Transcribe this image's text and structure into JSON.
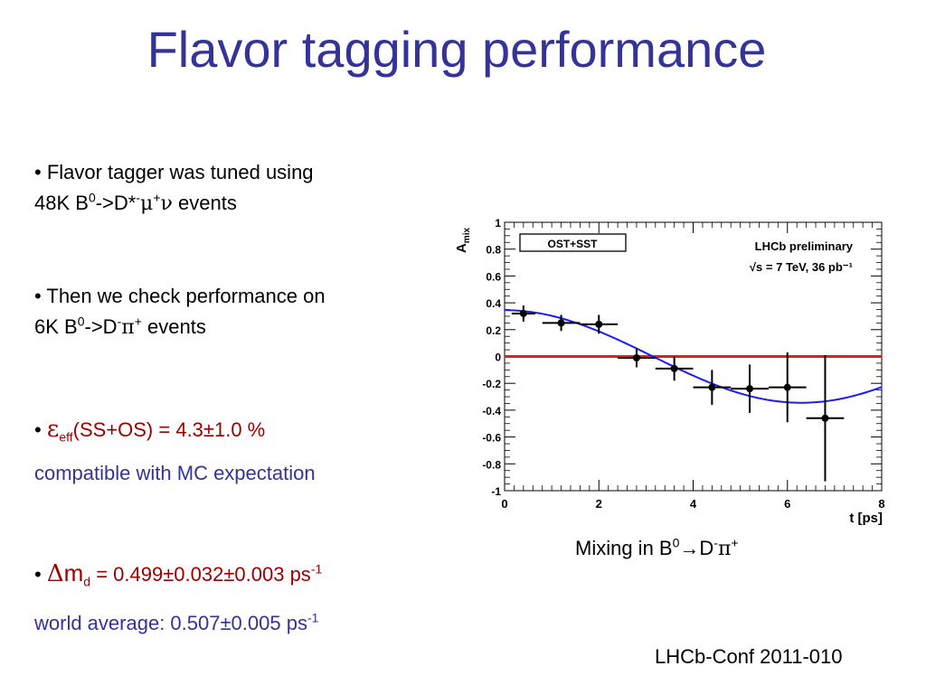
{
  "title": "Flavor tagging performance",
  "bullets": {
    "b1_line1": "• Flavor tagger was tuned using",
    "b1_line2_pre": "48K B",
    "b1_sup1": "0",
    "b1_mid": "->D*",
    "b1_sup2": "-",
    "b1_mu": "μ",
    "b1_sup3": "+",
    "b1_nu": "ν",
    "b1_end": " events",
    "b2_line1": "• Then we check performance on",
    "b2_line2_pre": "6K B",
    "b2_sup1": "0",
    "b2_mid": "->D",
    "b2_sup2": "-",
    "b2_pi": "π",
    "b2_sup3": "+",
    "b2_end": " events",
    "b3_bullet": "• ",
    "b3_eps": "ε",
    "b3_sub": "eff",
    "b3_rest": "(SS+OS) = 4.3±1.0 %",
    "b3_note": "compatible with MC expectation",
    "b4_bullet": "• ",
    "b4_delta": "Δ",
    "b4_m": "m",
    "b4_sub": "d",
    "b4_rest": " = 0.499±0.032±0.003 ps",
    "b4_sup": "-1",
    "b4_note_pre": "world average: 0.507±0.005 ps",
    "b4_note_sup": "-1"
  },
  "caption": {
    "pre": "Mixing in B",
    "sup1": "0",
    "arrow": "→",
    "d": "D",
    "sup2": "-",
    "pi": "π",
    "sup3": "+"
  },
  "footer": "LHCb-Conf 2011-010",
  "colors": {
    "title": "#333399",
    "highlight": "#990000",
    "fit_curve": "#1a1aff",
    "zero_line": "#e02020"
  },
  "chart_data": {
    "type": "scatter",
    "xlabel": "t [ps]",
    "ylabel": "A_mix",
    "xlim": [
      0,
      8
    ],
    "ylim": [
      -1,
      1
    ],
    "x_ticks": [
      "0",
      "2",
      "4",
      "6",
      "8"
    ],
    "y_ticks": [
      "-1",
      "-0.8",
      "-0.6",
      "-0.4",
      "-0.2",
      "0",
      "0.2",
      "0.4",
      "0.6",
      "0.8",
      "1"
    ],
    "legend_box": "OST+SST",
    "annotation_line1": "LHCb preliminary",
    "annotation_line2": "√s = 7 TeV, 36 pb⁻¹",
    "points": [
      {
        "x": 0.4,
        "y": 0.32,
        "xerr": 0.25,
        "yerr": 0.06
      },
      {
        "x": 1.2,
        "y": 0.25,
        "xerr": 0.4,
        "yerr": 0.06
      },
      {
        "x": 2.0,
        "y": 0.24,
        "xerr": 0.4,
        "yerr": 0.07
      },
      {
        "x": 2.8,
        "y": -0.01,
        "xerr": 0.4,
        "yerr": 0.07
      },
      {
        "x": 3.6,
        "y": -0.09,
        "xerr": 0.4,
        "yerr": 0.09
      },
      {
        "x": 4.4,
        "y": -0.23,
        "xerr": 0.4,
        "yerr": 0.13
      },
      {
        "x": 5.2,
        "y": -0.24,
        "xerr": 0.4,
        "yerr": 0.18
      },
      {
        "x": 6.0,
        "y": -0.23,
        "xerr": 0.4,
        "yerr": 0.26
      },
      {
        "x": 6.8,
        "y": -0.46,
        "xerr": 0.4,
        "yerr": 0.47
      }
    ],
    "fit": {
      "amplitude": 0.345,
      "dm_ps_inv": 0.499,
      "dilution_note": "A = a·cos(Δm t)"
    },
    "zero_line_y": 0
  }
}
